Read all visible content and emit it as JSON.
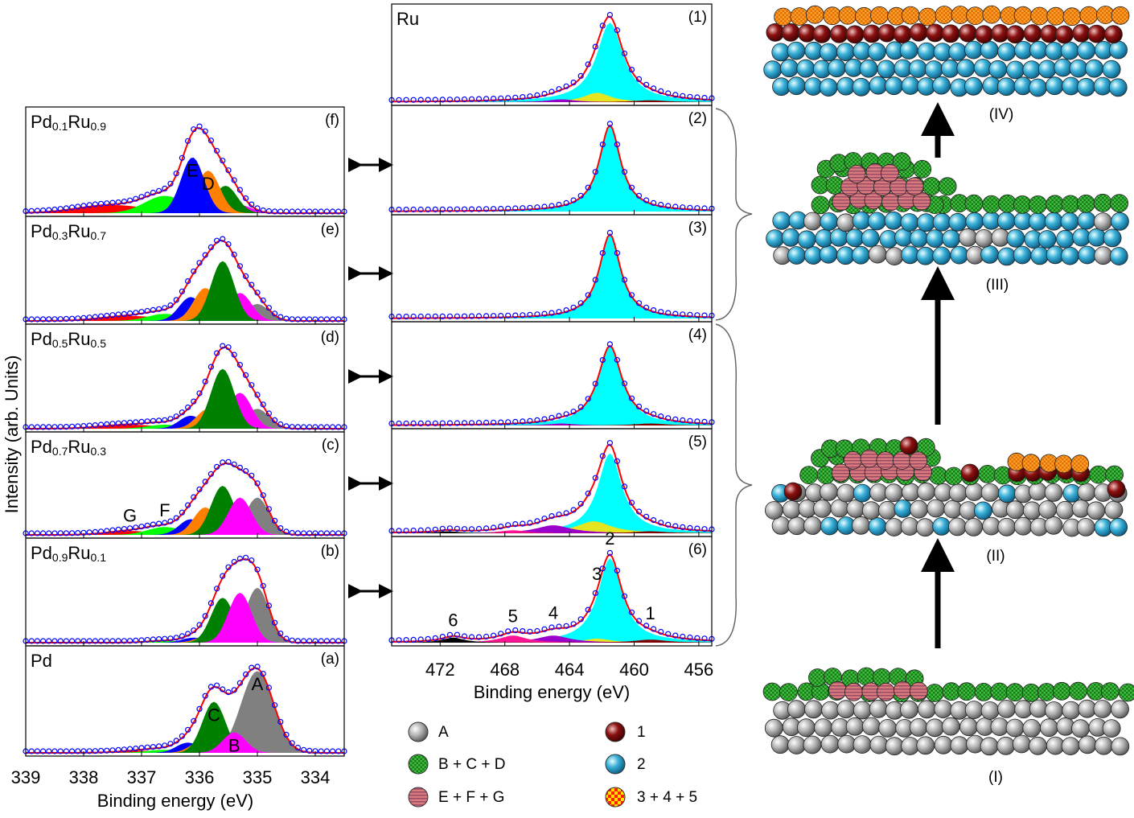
{
  "chart_data": [
    {
      "type": "spectra",
      "peak_shape": "gaussian",
      "xlabel": "Binding energy (eV)",
      "ylabel": "Intensity (arb. Units)",
      "xlim": [
        339,
        333.5
      ],
      "xticks": [
        339,
        338,
        337,
        336,
        335,
        334
      ],
      "ylim": [
        0,
        1
      ],
      "fit_color": "#ff0000",
      "point_color": "#0000ff",
      "panels": [
        {
          "label": "Pd0.1Ru0.9",
          "tag": "(f)",
          "peaks": [
            {
              "name": "G",
              "center": 337.5,
              "height": 0.08,
              "width": 0.6,
              "color": "#ff0000"
            },
            {
              "name": "F",
              "center": 336.6,
              "height": 0.17,
              "width": 0.35,
              "color": "#00ff00"
            },
            {
              "name": "B",
              "center": 335.3,
              "height": 0.08,
              "width": 0.2,
              "color": "#ff00ff"
            },
            {
              "name": "C",
              "center": 335.55,
              "height": 0.27,
              "width": 0.2,
              "color": "#008000"
            },
            {
              "name": "D",
              "center": 335.85,
              "height": 0.42,
              "width": 0.2,
              "color": "#ff8000",
              "labeled": true
            },
            {
              "name": "E",
              "center": 336.12,
              "height": 0.55,
              "width": 0.2,
              "color": "#0000ff",
              "labeled": true
            }
          ]
        },
        {
          "label": "Pd0.3Ru0.7",
          "tag": "(e)",
          "peaks": [
            {
              "name": "G",
              "center": 337.2,
              "height": 0.05,
              "width": 0.5,
              "color": "#ff0000"
            },
            {
              "name": "F",
              "center": 336.6,
              "height": 0.07,
              "width": 0.3,
              "color": "#00ff00"
            },
            {
              "name": "A",
              "center": 335.0,
              "height": 0.17,
              "width": 0.2,
              "color": "#808080"
            },
            {
              "name": "E",
              "center": 336.15,
              "height": 0.24,
              "width": 0.2,
              "color": "#0000ff"
            },
            {
              "name": "D",
              "center": 335.9,
              "height": 0.33,
              "width": 0.2,
              "color": "#ff8000"
            },
            {
              "name": "B",
              "center": 335.3,
              "height": 0.28,
              "width": 0.2,
              "color": "#ff00ff"
            },
            {
              "name": "C",
              "center": 335.6,
              "height": 0.6,
              "width": 0.2,
              "color": "#008000"
            }
          ]
        },
        {
          "label": "Pd0.5Ru0.5",
          "tag": "(d)",
          "peaks": [
            {
              "name": "G",
              "center": 337.2,
              "height": 0.04,
              "width": 0.5,
              "color": "#ff0000"
            },
            {
              "name": "F",
              "center": 336.6,
              "height": 0.04,
              "width": 0.3,
              "color": "#00ff00"
            },
            {
              "name": "A",
              "center": 335.0,
              "height": 0.2,
              "width": 0.2,
              "color": "#808080"
            },
            {
              "name": "E",
              "center": 336.15,
              "height": 0.13,
              "width": 0.2,
              "color": "#0000ff"
            },
            {
              "name": "D",
              "center": 335.85,
              "height": 0.2,
              "width": 0.2,
              "color": "#ff8000"
            },
            {
              "name": "B",
              "center": 335.3,
              "height": 0.36,
              "width": 0.2,
              "color": "#ff00ff"
            },
            {
              "name": "C",
              "center": 335.6,
              "height": 0.6,
              "width": 0.2,
              "color": "#008000"
            }
          ]
        },
        {
          "label": "Pd0.7Ru0.3",
          "tag": "(c)",
          "peaks": [
            {
              "name": "G",
              "center": 337.2,
              "height": 0.04,
              "width": 0.4,
              "color": "#ff0000",
              "labeled": true
            },
            {
              "name": "F",
              "center": 336.6,
              "height": 0.08,
              "width": 0.3,
              "color": "#00ff00",
              "labeled": true
            },
            {
              "name": "A",
              "center": 335.0,
              "height": 0.38,
              "width": 0.2,
              "color": "#808080"
            },
            {
              "name": "E",
              "center": 336.15,
              "height": 0.16,
              "width": 0.2,
              "color": "#0000ff"
            },
            {
              "name": "D",
              "center": 335.9,
              "height": 0.28,
              "width": 0.2,
              "color": "#ff8000"
            },
            {
              "name": "C",
              "center": 335.6,
              "height": 0.5,
              "width": 0.2,
              "color": "#008000"
            },
            {
              "name": "B",
              "center": 335.3,
              "height": 0.38,
              "width": 0.2,
              "color": "#ff00ff"
            }
          ]
        },
        {
          "label": "Pd0.9Ru0.1",
          "tag": "(b)",
          "peaks": [
            {
              "name": "F",
              "center": 336.6,
              "height": 0.02,
              "width": 0.3,
              "color": "#00ff00"
            },
            {
              "name": "E",
              "center": 336.1,
              "height": 0.05,
              "width": 0.2,
              "color": "#0000ff"
            },
            {
              "name": "D",
              "center": 335.85,
              "height": 0.07,
              "width": 0.2,
              "color": "#ff8000"
            },
            {
              "name": "A",
              "center": 335.0,
              "height": 0.55,
              "width": 0.2,
              "color": "#808080"
            },
            {
              "name": "C",
              "center": 335.6,
              "height": 0.45,
              "width": 0.2,
              "color": "#008000"
            },
            {
              "name": "B",
              "center": 335.3,
              "height": 0.5,
              "width": 0.2,
              "color": "#ff00ff"
            }
          ]
        },
        {
          "label": "Pd",
          "tag": "(a)",
          "peaks": [
            {
              "name": "G",
              "center": 337.0,
              "height": 0.02,
              "width": 0.4,
              "color": "#ff0000"
            },
            {
              "name": "F",
              "center": 336.6,
              "height": 0.03,
              "width": 0.3,
              "color": "#00ff00"
            },
            {
              "name": "E",
              "center": 336.2,
              "height": 0.1,
              "width": 0.2,
              "color": "#0000ff"
            },
            {
              "name": "D",
              "center": 335.95,
              "height": 0.12,
              "width": 0.2,
              "color": "#ff8000"
            },
            {
              "name": "A",
              "center": 335.0,
              "height": 0.8,
              "width": 0.28,
              "color": "#808080",
              "labeled": true
            },
            {
              "name": "C",
              "center": 335.75,
              "height": 0.5,
              "width": 0.2,
              "color": "#008000",
              "labeled": true
            },
            {
              "name": "B",
              "center": 335.4,
              "height": 0.2,
              "width": 0.2,
              "color": "#ff00ff",
              "labeled": true
            }
          ]
        }
      ]
    },
    {
      "type": "spectra",
      "peak_shape": "lorentzian",
      "xlabel": "Binding energy (eV)",
      "xlim": [
        475,
        455.2
      ],
      "xticks": [
        472,
        468,
        464,
        460,
        456
      ],
      "ylim": [
        0,
        1
      ],
      "fit_color": "#ff0000",
      "point_color": "#0000ff",
      "panels": [
        {
          "label": "Ru",
          "tag": "(1)",
          "peaks": [
            {
              "name": "2",
              "center": 461.5,
              "height": 0.85,
              "width": 1.0,
              "color": "#00ffff"
            },
            {
              "name": "3",
              "center": 462.3,
              "height": 0.1,
              "width": 1.0,
              "color": "#e6e620"
            },
            {
              "name": "4",
              "center": 464.5,
              "height": 0.03,
              "width": 1.0,
              "color": "#9900cc"
            },
            {
              "name": "1",
              "center": 459,
              "height": 0.02,
              "width": 1.2,
              "color": "#800000"
            }
          ]
        },
        {
          "tag": "(2)",
          "peaks": [
            {
              "name": "2",
              "center": 461.5,
              "height": 0.85,
              "width": 0.8,
              "color": "#00ffff"
            }
          ]
        },
        {
          "tag": "(3)",
          "peaks": [
            {
              "name": "2",
              "center": 461.5,
              "height": 0.85,
              "width": 0.8,
              "color": "#00ffff"
            }
          ]
        },
        {
          "tag": "(4)",
          "peaks": [
            {
              "name": "2",
              "center": 461.5,
              "height": 0.8,
              "width": 0.9,
              "color": "#00ffff"
            },
            {
              "name": "4",
              "center": 464.5,
              "height": 0.02,
              "width": 1.0,
              "color": "#9900cc"
            },
            {
              "name": "1",
              "center": 459,
              "height": 0.02,
              "width": 1.2,
              "color": "#800000"
            }
          ]
        },
        {
          "tag": "(5)",
          "peaks": [
            {
              "name": "2",
              "center": 461.5,
              "height": 0.8,
              "width": 0.9,
              "color": "#00ffff"
            },
            {
              "name": "3",
              "center": 462.5,
              "height": 0.12,
              "width": 1.3,
              "color": "#e6e620"
            },
            {
              "name": "4",
              "center": 465,
              "height": 0.08,
              "width": 1.3,
              "color": "#9900cc"
            },
            {
              "name": "5",
              "center": 467.5,
              "height": 0.03,
              "width": 1.0,
              "color": "#ff1493"
            },
            {
              "name": "6",
              "center": 471.5,
              "height": 0.02,
              "width": 0.8,
              "color": "#000000"
            },
            {
              "name": "1",
              "center": 459,
              "height": 0.02,
              "width": 1.2,
              "color": "#800000"
            }
          ]
        },
        {
          "tag": "(6)",
          "peaks": [
            {
              "name": "2",
              "center": 461.5,
              "height": 0.83,
              "width": 0.9,
              "color": "#00ffff",
              "labeled": true
            },
            {
              "name": "3",
              "center": 462.3,
              "height": 0.04,
              "width": 1.0,
              "color": "#e6e620",
              "labeled": true
            },
            {
              "name": "4",
              "center": 465,
              "height": 0.07,
              "width": 1.2,
              "color": "#9900cc",
              "labeled": true
            },
            {
              "name": "5",
              "center": 467.5,
              "height": 0.07,
              "width": 1.0,
              "color": "#ff1493",
              "labeled": true
            },
            {
              "name": "6",
              "center": 471.2,
              "height": 0.05,
              "width": 0.8,
              "color": "#000000",
              "labeled": true
            },
            {
              "name": "1",
              "center": 459,
              "height": 0.03,
              "width": 1.2,
              "color": "#800000",
              "labeled": true
            }
          ]
        }
      ]
    }
  ],
  "schematic": {
    "stages": [
      {
        "label": "(IV)"
      },
      {
        "label": "(III)"
      },
      {
        "label": "(II)"
      },
      {
        "label": "(I)"
      }
    ]
  },
  "legend": [
    {
      "label": "A"
    },
    {
      "label": "B + C + D"
    },
    {
      "label": "E + F + G"
    },
    {
      "label": "1"
    },
    {
      "label": "2"
    },
    {
      "label": "3 + 4 + 5"
    }
  ]
}
